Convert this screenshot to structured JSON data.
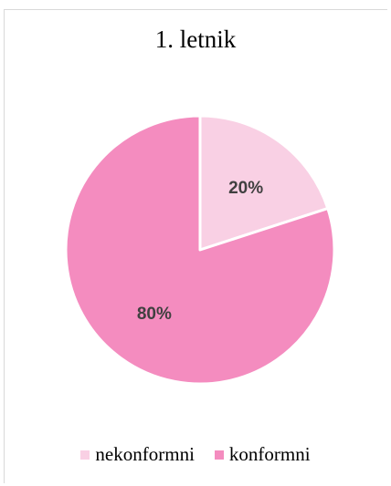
{
  "chart_data": {
    "type": "pie",
    "title": "1. letnik",
    "categories": [
      "nekonformni",
      "konformni"
    ],
    "values": [
      20,
      80
    ],
    "labels": [
      "20%",
      "80%"
    ],
    "colors": [
      "#f9d0e4",
      "#f48cbf"
    ],
    "legend_position": "bottom",
    "start_angle": "12 o'clock, clockwise"
  }
}
